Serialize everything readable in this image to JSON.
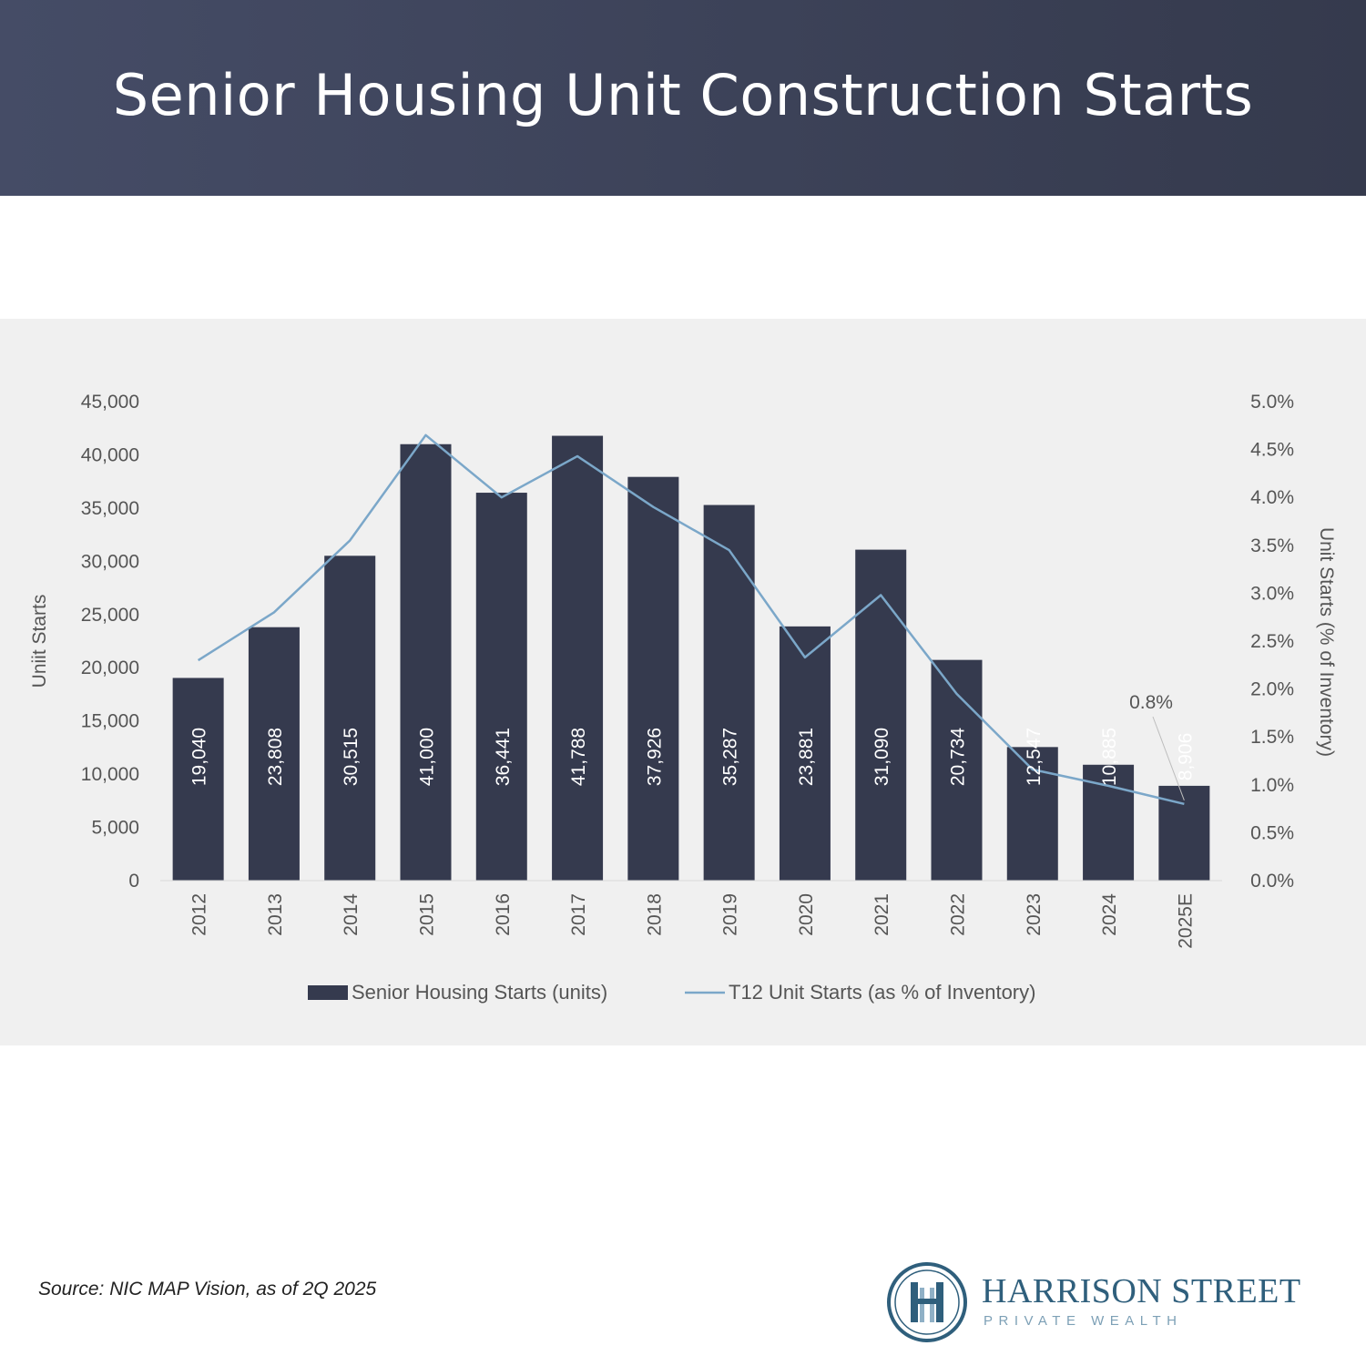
{
  "header": {
    "title": "Senior Housing Unit Construction Starts"
  },
  "source": "Source: NIC MAP Vision, as of 2Q 2025",
  "logo": {
    "name": "HARRISON STREET",
    "tagline": "PRIVATE WEALTH"
  },
  "colors": {
    "header_bg": "#3f4560",
    "bar": "#353a4e",
    "line": "#7ba7c9",
    "panel_bg": "#f0f0f0",
    "logo": "#2f5f7c"
  },
  "chart_data": {
    "type": "bar",
    "categories": [
      "2012",
      "2013",
      "2014",
      "2015",
      "2016",
      "2017",
      "2018",
      "2019",
      "2020",
      "2021",
      "2022",
      "2023",
      "2024",
      "2025E"
    ],
    "series": [
      {
        "name": "Senior Housing Starts (units)",
        "type": "bar",
        "axis": "left",
        "values": [
          19040,
          23808,
          30515,
          41000,
          36441,
          41788,
          37926,
          35287,
          23881,
          31090,
          20734,
          12547,
          10885,
          8906
        ],
        "labels": [
          "19,040",
          "23,808",
          "30,515",
          "41,000",
          "36,441",
          "41,788",
          "37,926",
          "35,287",
          "23,881",
          "31,090",
          "20,734",
          "12,547",
          "10,885",
          "8,906"
        ]
      },
      {
        "name": "T12 Unit Starts (as % of Inventory)",
        "type": "line",
        "axis": "right",
        "values": [
          2.3,
          2.8,
          3.55,
          4.65,
          4.0,
          4.43,
          3.9,
          3.45,
          2.33,
          2.98,
          1.95,
          1.16,
          0.99,
          0.8
        ]
      }
    ],
    "y_left": {
      "label": "Uniit  Starts",
      "range": [
        0,
        45000
      ],
      "ticks": [
        "0",
        "5,000",
        "10,000",
        "15,000",
        "20,000",
        "25,000",
        "30,000",
        "35,000",
        "40,000",
        "45,000"
      ]
    },
    "y_right": {
      "label": "Unit Starts (% of Inventory)",
      "range": [
        0,
        5
      ],
      "ticks": [
        "0.0%",
        "0.5%",
        "1.0%",
        "1.5%",
        "2.0%",
        "2.5%",
        "3.0%",
        "3.5%",
        "4.0%",
        "4.5%",
        "5.0%"
      ]
    },
    "annotation": {
      "text": "0.8%",
      "category": "2025E"
    },
    "grid": false,
    "legend_position": "bottom"
  }
}
